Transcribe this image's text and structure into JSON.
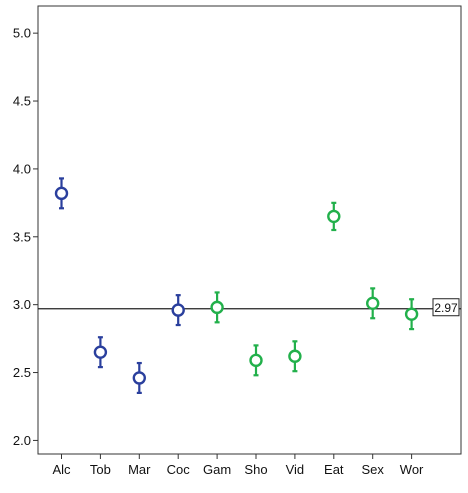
{
  "chart_data": {
    "type": "scatter",
    "title": "",
    "xlabel": "",
    "ylabel": "",
    "categories": [
      "Alc",
      "Tob",
      "Mar",
      "Coc",
      "Gam",
      "Sho",
      "Vid",
      "Eat",
      "Sex",
      "Wor"
    ],
    "values": [
      3.82,
      2.65,
      2.46,
      2.96,
      2.98,
      2.59,
      2.62,
      3.65,
      3.01,
      2.93
    ],
    "error_low": [
      3.71,
      2.54,
      2.35,
      2.85,
      2.87,
      2.48,
      2.51,
      3.55,
      2.9,
      2.82
    ],
    "error_high": [
      3.93,
      2.76,
      2.57,
      3.07,
      3.09,
      2.7,
      2.73,
      3.75,
      3.12,
      3.04
    ],
    "point_colors": [
      "#2a3f9d",
      "#2a3f9d",
      "#2a3f9d",
      "#2a3f9d",
      "#22b04b",
      "#22b04b",
      "#22b04b",
      "#22b04b",
      "#22b04b",
      "#22b04b"
    ],
    "ylim": [
      1.9,
      5.2
    ],
    "yticks": [
      "2.0",
      "2.5",
      "3.0",
      "3.5",
      "4.0",
      "4.5",
      "5.0"
    ],
    "reference_line": {
      "value": 2.97,
      "label": "2.97"
    },
    "grid": false,
    "legend": "none"
  }
}
